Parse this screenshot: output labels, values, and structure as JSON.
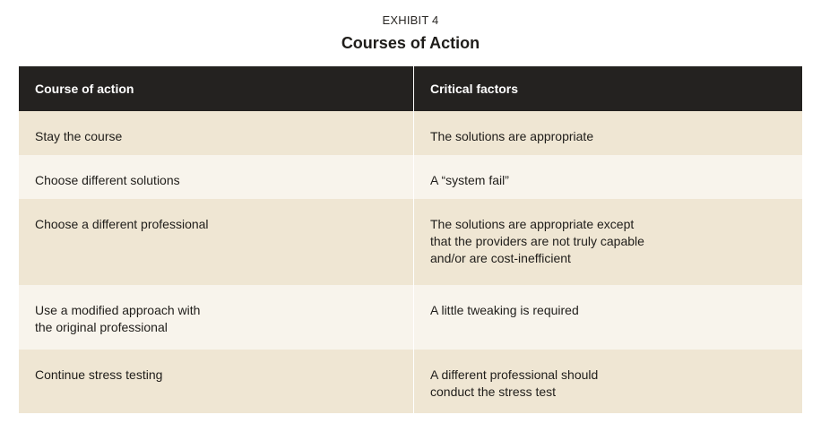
{
  "exhibit": {
    "label": "EXHIBIT 4",
    "title": "Courses of Action"
  },
  "table": {
    "headers": [
      "Course of action",
      "Critical factors"
    ],
    "rows": [
      {
        "course": "Stay the course",
        "factors": "The solutions are appropriate"
      },
      {
        "course": "Choose different solutions",
        "factors": "A “system fail”"
      },
      {
        "course": "Choose a different professional",
        "factors": "The solutions are appropriate except\nthat the providers are not truly capable\nand/or are cost-inefficient"
      },
      {
        "course": "Use a modified approach with\nthe original professional",
        "factors": "A little tweaking is required"
      },
      {
        "course": "Continue stress testing",
        "factors": "A different professional should\nconduct the stress test"
      }
    ]
  },
  "colors": {
    "header_bg": "#242220",
    "row_tan": "#efe6d3",
    "row_cream": "#f8f4ec"
  }
}
